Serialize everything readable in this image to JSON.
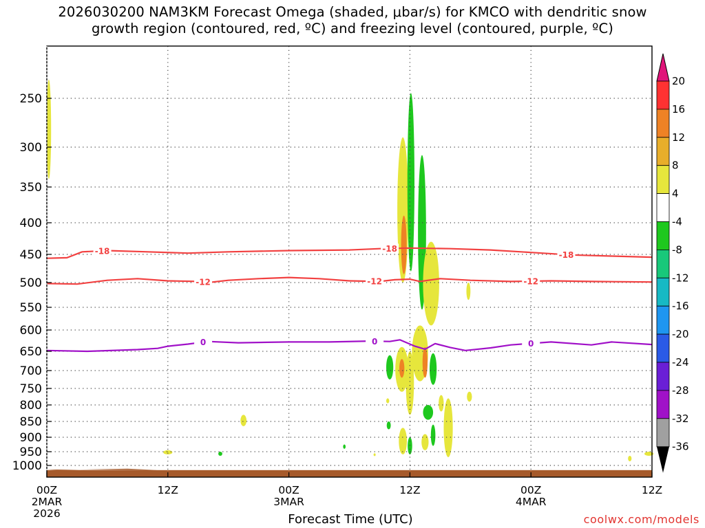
{
  "title": {
    "line1": "2026030200 NAM3KM Forecast Omega (shaded, μbar/s) for KMCO with dendritic snow",
    "line2": "growth region (contoured, red, ºC) and freezing level (contoured, purple, ºC)"
  },
  "credit": "coolwx.com/models",
  "chart_data": {
    "type": "heatmap",
    "xlabel": "Forecast Time (UTC)",
    "ylabel": "",
    "x_units": "forecast hours",
    "x_range": [
      0,
      60
    ],
    "y_units": "mb",
    "y_range": [
      1025,
      200
    ],
    "x_ticks": [
      {
        "hour": 0,
        "label": "00Z",
        "sub1": "2MAR",
        "sub2": "2026"
      },
      {
        "hour": 12,
        "label": "12Z",
        "sub1": "",
        "sub2": ""
      },
      {
        "hour": 24,
        "label": "00Z",
        "sub1": "3MAR",
        "sub2": ""
      },
      {
        "hour": 36,
        "label": "12Z",
        "sub1": "",
        "sub2": ""
      },
      {
        "hour": 48,
        "label": "00Z",
        "sub1": "4MAR",
        "sub2": ""
      },
      {
        "hour": 60,
        "label": "12Z",
        "sub1": "",
        "sub2": ""
      }
    ],
    "y_ticks": [
      250,
      300,
      350,
      400,
      450,
      500,
      550,
      600,
      650,
      700,
      750,
      800,
      850,
      900,
      950,
      1000
    ],
    "colorbar": {
      "ticks": [
        20,
        16,
        12,
        8,
        4,
        -4,
        -8,
        -12,
        -16,
        -20,
        -24,
        -28,
        -32,
        -36
      ],
      "bands": [
        {
          "from": 16,
          "to": 20,
          "color": "#ff3232"
        },
        {
          "from": 12,
          "to": 16,
          "color": "#ee8225"
        },
        {
          "from": 8,
          "to": 12,
          "color": "#e8ae2a"
        },
        {
          "from": 4,
          "to": 8,
          "color": "#e6e63c"
        },
        {
          "from": -4,
          "to": 4,
          "color": "#ffffff"
        },
        {
          "from": -8,
          "to": -4,
          "color": "#1ec81e"
        },
        {
          "from": -12,
          "to": -8,
          "color": "#18c87a"
        },
        {
          "from": -16,
          "to": -12,
          "color": "#17b9c4"
        },
        {
          "from": -20,
          "to": -16,
          "color": "#1e96f0"
        },
        {
          "from": -24,
          "to": -20,
          "color": "#2a5ae6"
        },
        {
          "from": -28,
          "to": -24,
          "color": "#6a1fd6"
        },
        {
          "from": -32,
          "to": -28,
          "color": "#a012c8"
        },
        {
          "from": -36,
          "to": -32,
          "color": "#a0a0a0"
        }
      ],
      "top_arrow_color": "#e0157a",
      "bottom_arrow_color": "#000000"
    },
    "contours": [
      {
        "name": "-18",
        "color": "#f24040",
        "labels_at_hours": [
          5.5,
          34,
          51.5
        ],
        "points": [
          [
            0,
            457
          ],
          [
            2,
            456
          ],
          [
            3.5,
            446
          ],
          [
            6,
            444
          ],
          [
            10,
            446
          ],
          [
            14,
            448
          ],
          [
            18,
            446
          ],
          [
            24,
            444
          ],
          [
            30,
            443
          ],
          [
            33,
            441
          ],
          [
            36,
            440
          ],
          [
            40,
            441
          ],
          [
            44,
            443
          ],
          [
            48,
            447
          ],
          [
            52,
            451
          ],
          [
            56,
            453
          ],
          [
            60,
            455
          ]
        ]
      },
      {
        "name": "-12",
        "color": "#f24040",
        "labels_at_hours": [
          15.5,
          32.5,
          48
        ],
        "points": [
          [
            0,
            502
          ],
          [
            3,
            503
          ],
          [
            6,
            496
          ],
          [
            9,
            493
          ],
          [
            12,
            497
          ],
          [
            15,
            498
          ],
          [
            16,
            500
          ],
          [
            18,
            496
          ],
          [
            21,
            493
          ],
          [
            24,
            491
          ],
          [
            27,
            493
          ],
          [
            30,
            497
          ],
          [
            33,
            498
          ],
          [
            34.5,
            495
          ],
          [
            36,
            494
          ],
          [
            37,
            498
          ],
          [
            39,
            493
          ],
          [
            42,
            496
          ],
          [
            46,
            498
          ],
          [
            50,
            497
          ],
          [
            54,
            498
          ],
          [
            60,
            499
          ]
        ]
      },
      {
        "name": "0",
        "color": "#a010c8",
        "labels_at_hours": [
          15.5,
          32.5,
          48
        ],
        "points": [
          [
            0,
            648
          ],
          [
            4,
            650
          ],
          [
            9,
            646
          ],
          [
            11,
            643
          ],
          [
            12,
            638
          ],
          [
            14,
            633
          ],
          [
            16,
            627
          ],
          [
            19,
            630
          ],
          [
            24,
            628
          ],
          [
            28,
            628
          ],
          [
            32,
            626
          ],
          [
            34,
            627
          ],
          [
            35,
            623
          ],
          [
            36.5,
            638
          ],
          [
            37.5,
            645
          ],
          [
            38.5,
            632
          ],
          [
            40,
            641
          ],
          [
            41.5,
            648
          ],
          [
            44,
            642
          ],
          [
            46,
            635
          ],
          [
            50,
            628
          ],
          [
            54,
            635
          ],
          [
            56,
            628
          ],
          [
            60,
            634
          ]
        ]
      }
    ],
    "omega_regions": [
      {
        "hour": 0.2,
        "p_top": 232,
        "p_bot": 340,
        "width_h": 0.45,
        "value": 6
      },
      {
        "hour": 35.3,
        "p_top": 290,
        "p_bot": 500,
        "width_h": 1.1,
        "value": 7
      },
      {
        "hour": 35.4,
        "p_top": 390,
        "p_bot": 485,
        "width_h": 0.55,
        "value": 12
      },
      {
        "hour": 36.1,
        "p_top": 245,
        "p_bot": 480,
        "width_h": 0.7,
        "value": -6
      },
      {
        "hour": 37.2,
        "p_top": 310,
        "p_bot": 555,
        "width_h": 0.8,
        "value": -6
      },
      {
        "hour": 38.1,
        "p_top": 430,
        "p_bot": 590,
        "width_h": 1.6,
        "value": 6
      },
      {
        "hour": 41.8,
        "p_top": 500,
        "p_bot": 535,
        "width_h": 0.4,
        "value": 6
      },
      {
        "hour": 37.0,
        "p_top": 590,
        "p_bot": 730,
        "width_h": 1.6,
        "value": 7
      },
      {
        "hour": 37.5,
        "p_top": 640,
        "p_bot": 720,
        "width_h": 0.5,
        "value": 12
      },
      {
        "hour": 35.2,
        "p_top": 640,
        "p_bot": 760,
        "width_h": 1.3,
        "value": 7
      },
      {
        "hour": 35.2,
        "p_top": 670,
        "p_bot": 720,
        "width_h": 0.5,
        "value": 12
      },
      {
        "hour": 36.0,
        "p_top": 650,
        "p_bot": 830,
        "width_h": 0.8,
        "value": 6
      },
      {
        "hour": 34.0,
        "p_top": 660,
        "p_bot": 725,
        "width_h": 0.7,
        "value": -6
      },
      {
        "hour": 38.3,
        "p_top": 655,
        "p_bot": 740,
        "width_h": 0.7,
        "value": -6
      },
      {
        "hour": 37.8,
        "p_top": 800,
        "p_bot": 845,
        "width_h": 1.0,
        "value": -6
      },
      {
        "hour": 33.9,
        "p_top": 850,
        "p_bot": 875,
        "width_h": 0.4,
        "value": -6
      },
      {
        "hour": 35.3,
        "p_top": 870,
        "p_bot": 960,
        "width_h": 0.8,
        "value": 7
      },
      {
        "hour": 36.0,
        "p_top": 900,
        "p_bot": 960,
        "width_h": 0.45,
        "value": -6
      },
      {
        "hour": 37.5,
        "p_top": 890,
        "p_bot": 945,
        "width_h": 0.7,
        "value": 6
      },
      {
        "hour": 38.3,
        "p_top": 860,
        "p_bot": 930,
        "width_h": 0.45,
        "value": -6
      },
      {
        "hour": 39.8,
        "p_top": 780,
        "p_bot": 970,
        "width_h": 0.9,
        "value": 6
      },
      {
        "hour": 39.1,
        "p_top": 770,
        "p_bot": 820,
        "width_h": 0.5,
        "value": 6
      },
      {
        "hour": 41.9,
        "p_top": 760,
        "p_bot": 790,
        "width_h": 0.5,
        "value": 6
      },
      {
        "hour": 33.8,
        "p_top": 780,
        "p_bot": 795,
        "width_h": 0.3,
        "value": 6
      },
      {
        "hour": 19.5,
        "p_top": 830,
        "p_bot": 865,
        "width_h": 0.6,
        "value": 6
      },
      {
        "hour": 12.0,
        "p_top": 945,
        "p_bot": 960,
        "width_h": 0.9,
        "value": 6
      },
      {
        "hour": 17.2,
        "p_top": 950,
        "p_bot": 965,
        "width_h": 0.4,
        "value": -6
      },
      {
        "hour": 29.5,
        "p_top": 925,
        "p_bot": 940,
        "width_h": 0.25,
        "value": -6
      },
      {
        "hour": 32.5,
        "p_top": 960,
        "p_bot": 962,
        "width_h": 0.2,
        "value": 6
      },
      {
        "hour": 57.8,
        "p_top": 965,
        "p_bot": 985,
        "width_h": 0.35,
        "value": 6
      },
      {
        "hour": 59.7,
        "p_top": 950,
        "p_bot": 965,
        "width_h": 0.9,
        "value": 6
      }
    ],
    "terrain": {
      "color": "#a65a2b",
      "p_top": 1010,
      "p_bot": 1025
    },
    "grid": true
  }
}
